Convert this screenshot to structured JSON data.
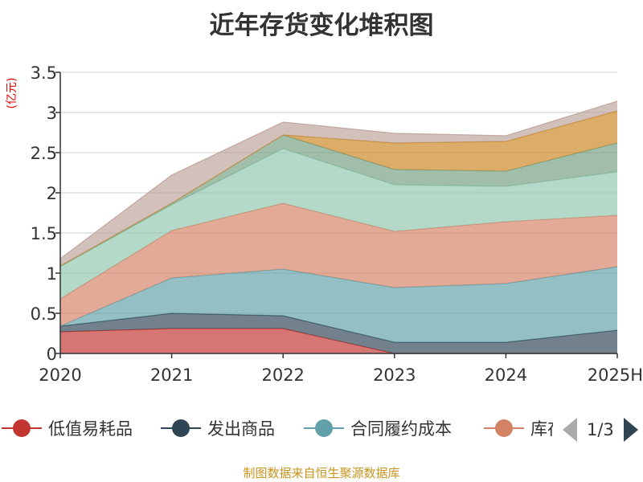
{
  "title": "近年存货变化堆积图",
  "unit_label": "(亿元)",
  "source_note": "制图数据来自恒生聚源数据库",
  "legend": {
    "items": [
      {
        "name": "低值易耗品",
        "color": "#c23531"
      },
      {
        "name": "发出商品",
        "color": "#2f4554"
      },
      {
        "name": "合同履约成本",
        "color": "#61a0a8"
      },
      {
        "name": "库存商品",
        "color": "#d48265"
      }
    ],
    "page_text": "1/3"
  },
  "chart_data": {
    "type": "area",
    "stacked": true,
    "categories": [
      "2020",
      "2021",
      "2022",
      "2023",
      "2024",
      "2025H"
    ],
    "ylim": [
      0,
      3.5
    ],
    "yticks": [
      "0",
      "0.5",
      "1",
      "1.5",
      "2",
      "2.5",
      "3",
      "3.5"
    ],
    "ylabel": "(亿元)",
    "grid": true,
    "series": [
      {
        "name": "低值易耗品",
        "color": "#c23531",
        "values": [
          0.27,
          0.31,
          0.31,
          0.0,
          0.0,
          0.0
        ]
      },
      {
        "name": "发出商品",
        "color": "#2f4554",
        "values": [
          0.07,
          0.19,
          0.16,
          0.14,
          0.14,
          0.29
        ]
      },
      {
        "name": "合同履约成本",
        "color": "#61a0a8",
        "values": [
          0.0,
          0.44,
          0.58,
          0.68,
          0.73,
          0.79
        ]
      },
      {
        "name": "库存商品",
        "color": "#d48265",
        "values": [
          0.34,
          0.59,
          0.82,
          0.7,
          0.77,
          0.64
        ]
      },
      {
        "color": "#91c7ae",
        "values": [
          0.4,
          0.32,
          0.68,
          0.58,
          0.44,
          0.54
        ]
      },
      {
        "color": "#749f83",
        "values": [
          0.01,
          0.02,
          0.17,
          0.19,
          0.19,
          0.36
        ]
      },
      {
        "color": "#ca8622",
        "values": [
          0.0,
          0.0,
          0.0,
          0.33,
          0.37,
          0.4
        ]
      },
      {
        "color": "#bda29a",
        "values": [
          0.09,
          0.35,
          0.16,
          0.12,
          0.07,
          0.12
        ]
      }
    ]
  }
}
